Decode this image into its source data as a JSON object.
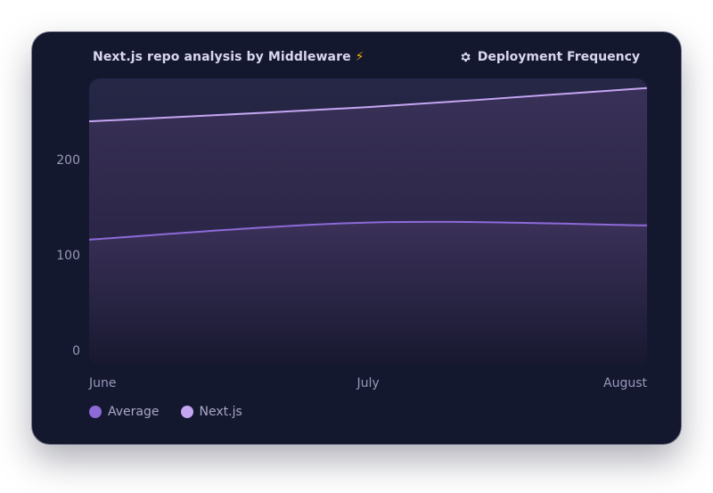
{
  "header": {
    "title": "Next.js repo analysis by Middleware",
    "bolt": "⚡",
    "metric_label": "Deployment Frequency",
    "metric_icon": "gear-icon"
  },
  "colors": {
    "card_bg": "#14182f",
    "average": "#8d6ad9",
    "nextjs": "#c4a6f2"
  },
  "chart_data": {
    "type": "area",
    "categories": [
      "June",
      "July",
      "August"
    ],
    "series": [
      {
        "name": "Average",
        "values": [
          131,
          149,
          146
        ]
      },
      {
        "name": "Next.js",
        "values": [
          255,
          270,
          290
        ]
      }
    ],
    "yticks": [
      "0",
      "100",
      "200"
    ],
    "ylim": [
      0,
      300
    ],
    "grid": false,
    "legend": "bottom-left"
  }
}
